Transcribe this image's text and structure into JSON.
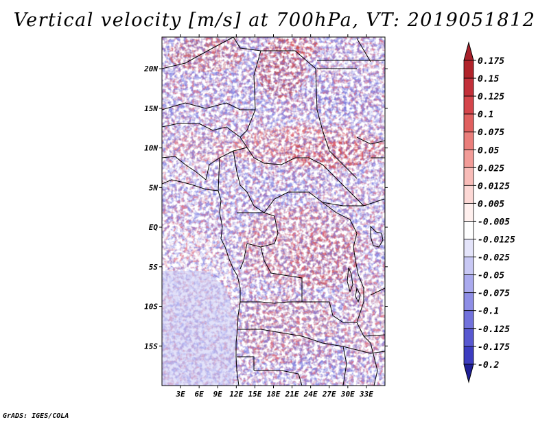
{
  "title": "Vertical velocity [m/s] at 700hPa, VT: 2019051812",
  "credit": "GrADS: IGES/COLA",
  "map": {
    "lon_range": [
      0,
      36
    ],
    "lat_range": [
      -20,
      24
    ],
    "lon_ticks": [
      {
        "value": 3,
        "label": "3E"
      },
      {
        "value": 6,
        "label": "6E"
      },
      {
        "value": 9,
        "label": "9E"
      },
      {
        "value": 12,
        "label": "12E"
      },
      {
        "value": 15,
        "label": "15E"
      },
      {
        "value": 18,
        "label": "18E"
      },
      {
        "value": 21,
        "label": "21E"
      },
      {
        "value": 24,
        "label": "24E"
      },
      {
        "value": 27,
        "label": "27E"
      },
      {
        "value": 30,
        "label": "30E"
      },
      {
        "value": 33,
        "label": "33E"
      }
    ],
    "lat_ticks": [
      {
        "value": 20,
        "label": "20N"
      },
      {
        "value": 15,
        "label": "15N"
      },
      {
        "value": 10,
        "label": "10N"
      },
      {
        "value": 5,
        "label": "5N"
      },
      {
        "value": 0,
        "label": "EQ"
      },
      {
        "value": -5,
        "label": "5S"
      },
      {
        "value": -10,
        "label": "10S"
      },
      {
        "value": -15,
        "label": "15S"
      }
    ]
  },
  "colorbar": {
    "levels": [
      {
        "label": "0.175",
        "color": "#b0232a"
      },
      {
        "label": "0.15",
        "color": "#c2303a"
      },
      {
        "label": "0.125",
        "color": "#d4454b"
      },
      {
        "label": "0.1",
        "color": "#e0605f"
      },
      {
        "label": "0.075",
        "color": "#ea7e7b"
      },
      {
        "label": "0.05",
        "color": "#f29c98"
      },
      {
        "label": "0.025",
        "color": "#f8bcb8"
      },
      {
        "label": "0.0125",
        "color": "#fcd8d5"
      },
      {
        "label": "0.005",
        "color": "#fff0ee"
      },
      {
        "label": "-0.005",
        "color": "#ffffff"
      },
      {
        "label": "-0.0125",
        "color": "#e4e4fa"
      },
      {
        "label": "-0.025",
        "color": "#c8c8f4"
      },
      {
        "label": "-0.05",
        "color": "#aaaaee"
      },
      {
        "label": "-0.075",
        "color": "#8e8ee6"
      },
      {
        "label": "-0.1",
        "color": "#7272dc"
      },
      {
        "label": "-0.125",
        "color": "#5858d0"
      },
      {
        "label": "-0.175",
        "color": "#3c3cc0"
      },
      {
        "label": "-0.2",
        "color": "#2828a8"
      }
    ],
    "top_color": "#a8202a",
    "bottom_color": "#1e1e96"
  }
}
